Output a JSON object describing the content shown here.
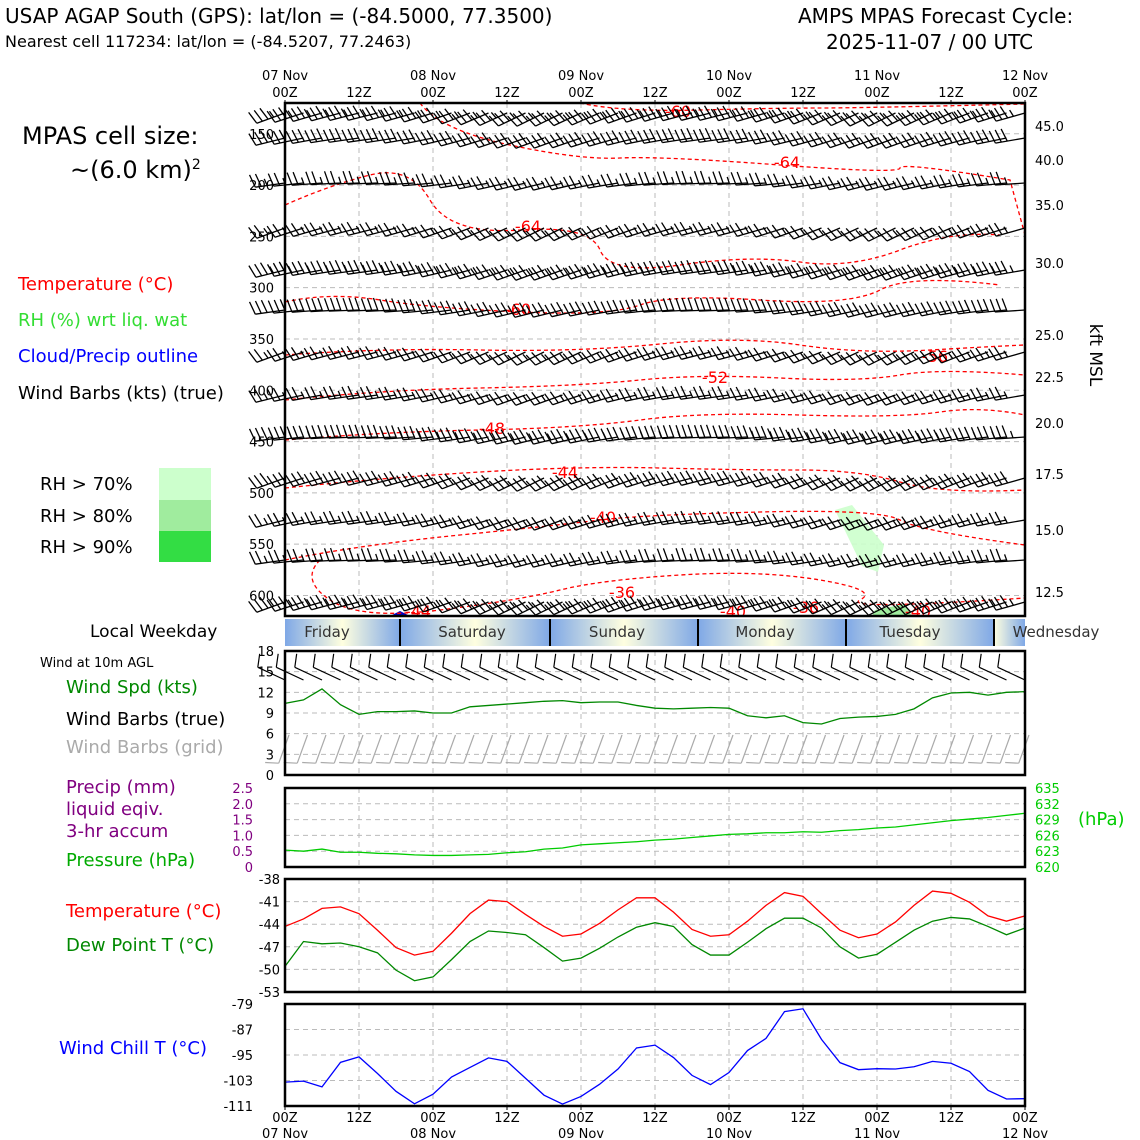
{
  "header": {
    "title_left": "USAP AGAP South (GPS): lat/lon = (-84.5000, 77.3500)",
    "subtitle_left": "Nearest cell 117234: lat/lon = (-84.5207, 77.2463)",
    "title_right_1": "AMPS MPAS Forecast Cycle:",
    "title_right_2": "2025-11-07 / 00 UTC"
  },
  "legend": {
    "cell_size_label": "MPAS cell size:",
    "cell_size_value": "~(6.0 km)",
    "cell_size_exp": "2",
    "temperature": "Temperature (°C)",
    "rh": "RH (%) wrt liq. wat",
    "cloud": "Cloud/Precip outline",
    "barbs": "Wind Barbs (kts) (true)",
    "rh70": "RH > 70%",
    "rh80": "RH > 80%",
    "rh90": "RH > 90%",
    "local_weekday": "Local Weekday",
    "wind10m": "Wind at 10m AGL",
    "wind_spd": "Wind Spd (kts)",
    "wind_barbs_true": "Wind Barbs (true)",
    "wind_barbs_grid": "Wind Barbs (grid)",
    "precip_1": "Precip (mm)",
    "precip_2": "liquid eqiv.",
    "precip_3": "3-hr accum",
    "pressure": "Pressure (hPa)",
    "hpa_unit": "(hPa)",
    "temp2": "Temperature (°C)",
    "dewpoint": "Dew Point T (°C)",
    "windchill": "Wind Chill T (°C)",
    "kft_label": "kft MSL"
  },
  "colors": {
    "temperature": "#ff0000",
    "rh": "#33dd33",
    "cloud": "#0000ff",
    "precip": "#800080",
    "pressure": "#00cc00",
    "windspd": "#008800",
    "dewpoint": "#008800",
    "windchill": "#0000ff",
    "grid_barbs": "#aaaaaa",
    "rh70": "#ccffcc",
    "rh80": "#a0ec9e",
    "rh90": "#33dd44"
  },
  "time_axis": {
    "top_dates": [
      "07 Nov",
      "08 Nov",
      "09 Nov",
      "10 Nov",
      "11 Nov",
      "12 Nov"
    ],
    "ticks": [
      "00Z",
      "12Z",
      "00Z",
      "12Z",
      "00Z",
      "12Z",
      "00Z",
      "12Z",
      "00Z",
      "12Z",
      "00Z"
    ],
    "bottom_dates": [
      "07 Nov",
      "08 Nov",
      "09 Nov",
      "10 Nov",
      "11 Nov",
      "12 Nov"
    ]
  },
  "weekdays": [
    "Friday",
    "Saturday",
    "Sunday",
    "Monday",
    "Tuesday",
    "Wednesday"
  ],
  "chart_data": [
    {
      "type": "heatmap",
      "name": "cross-section",
      "pressure_ticks": [
        150,
        200,
        250,
        300,
        350,
        400,
        450,
        500,
        550,
        600
      ],
      "kft_ticks": [
        "45.0",
        "40.0",
        "35.0",
        "30.0",
        "25.0",
        "22.5",
        "20.0",
        "17.5",
        "15.0",
        "12.5"
      ],
      "temp_contour_labels": [
        "-60",
        "-64",
        "-64",
        "-60",
        "-56",
        "-52",
        "-48",
        "-44",
        "-40",
        "-36",
        "-36",
        "-44",
        "-40",
        "-40"
      ],
      "ylim": [
        120,
        620
      ],
      "xlim_hours": [
        0,
        120
      ]
    },
    {
      "type": "line",
      "name": "wind10m",
      "ylim": [
        0,
        18
      ],
      "yticks": [
        0,
        3,
        6,
        9,
        12,
        15,
        18
      ],
      "x_hours": [
        0,
        3,
        6,
        9,
        12,
        15,
        18,
        21,
        24,
        27,
        30,
        33,
        36,
        39,
        42,
        45,
        48,
        51,
        54,
        57,
        60,
        63,
        66,
        69,
        72,
        75,
        78,
        81,
        84,
        87,
        90,
        93,
        96,
        99,
        102,
        105,
        108,
        111,
        114,
        117,
        120
      ],
      "series": [
        {
          "name": "Wind Spd (kts)",
          "values": [
            10.4,
            10.9,
            12.5,
            10.2,
            8.8,
            9.2,
            9.2,
            9.3,
            9.0,
            9.0,
            9.9,
            10.1,
            10.3,
            10.5,
            10.7,
            10.8,
            10.5,
            10.6,
            10.6,
            10.1,
            9.7,
            9.6,
            9.7,
            9.8,
            9.7,
            8.6,
            8.3,
            8.6,
            7.6,
            7.4,
            8.2,
            8.4,
            8.5,
            8.8,
            9.6,
            11.2,
            11.9,
            12.0,
            11.6,
            12.0,
            12.1
          ]
        }
      ]
    },
    {
      "type": "line",
      "name": "precip-pressure",
      "precip_ylim": [
        0,
        2.5
      ],
      "precip_yticks": [
        "0",
        "0.5",
        "1.0",
        "1.5",
        "2.0",
        "2.5"
      ],
      "pressure_ylim": [
        620,
        635
      ],
      "pressure_yticks": [
        "620",
        "623",
        "626",
        "629",
        "632",
        "635"
      ],
      "x_hours": [
        0,
        3,
        6,
        9,
        12,
        15,
        18,
        21,
        24,
        27,
        30,
        33,
        36,
        39,
        42,
        45,
        48,
        51,
        54,
        57,
        60,
        63,
        66,
        69,
        72,
        75,
        78,
        81,
        84,
        87,
        90,
        93,
        96,
        99,
        102,
        105,
        108,
        111,
        114,
        117,
        120
      ],
      "series": [
        {
          "name": "Pressure (hPa)",
          "values": [
            623.2,
            623.0,
            623.4,
            622.8,
            622.8,
            622.6,
            622.5,
            622.3,
            622.2,
            622.2,
            622.3,
            622.4,
            622.7,
            622.9,
            623.4,
            623.6,
            624.2,
            624.4,
            624.6,
            624.8,
            625.1,
            625.3,
            625.6,
            625.9,
            626.2,
            626.3,
            626.5,
            626.5,
            626.7,
            626.6,
            626.9,
            627.1,
            627.4,
            627.6,
            628.0,
            628.4,
            628.8,
            629.1,
            629.4,
            629.8,
            630.2
          ]
        },
        {
          "name": "Precip (mm)",
          "values": [
            0,
            0,
            0,
            0,
            0,
            0,
            0,
            0,
            0,
            0,
            0,
            0,
            0,
            0,
            0,
            0,
            0,
            0,
            0,
            0,
            0,
            0,
            0,
            0,
            0,
            0,
            0,
            0,
            0,
            0,
            0,
            0,
            0,
            0,
            0,
            0,
            0,
            0,
            0,
            0,
            0
          ]
        }
      ]
    },
    {
      "type": "line",
      "name": "temperature-dewpoint",
      "ylim": [
        -53,
        -38
      ],
      "yticks": [
        -53,
        -50,
        -47,
        -44,
        -41,
        -38
      ],
      "x_hours": [
        0,
        3,
        6,
        9,
        12,
        15,
        18,
        21,
        24,
        27,
        30,
        33,
        36,
        39,
        42,
        45,
        48,
        51,
        54,
        57,
        60,
        63,
        66,
        69,
        72,
        75,
        78,
        81,
        84,
        87,
        90,
        93,
        96,
        99,
        102,
        105,
        108,
        111,
        114,
        117,
        120
      ],
      "series": [
        {
          "name": "Temperature (°C)",
          "values": [
            -44.3,
            -43.3,
            -41.9,
            -41.7,
            -42.6,
            -44.8,
            -47.1,
            -48.1,
            -47.6,
            -45.2,
            -42.6,
            -40.8,
            -41.0,
            -42.7,
            -44.3,
            -45.6,
            -45.3,
            -43.9,
            -42.1,
            -40.5,
            -40.5,
            -42.4,
            -44.7,
            -45.6,
            -45.4,
            -43.6,
            -41.5,
            -39.8,
            -40.3,
            -42.6,
            -44.8,
            -45.8,
            -45.3,
            -43.7,
            -41.5,
            -39.6,
            -39.9,
            -41.1,
            -42.9,
            -43.6,
            -42.9
          ]
        },
        {
          "name": "Dew Point T (°C)",
          "values": [
            -49.6,
            -46.3,
            -46.6,
            -46.5,
            -47.0,
            -47.8,
            -50.1,
            -51.5,
            -51.0,
            -48.7,
            -46.3,
            -44.9,
            -45.1,
            -45.4,
            -47.1,
            -48.9,
            -48.5,
            -47.2,
            -45.7,
            -44.4,
            -43.8,
            -44.3,
            -46.7,
            -48.1,
            -48.1,
            -46.4,
            -44.6,
            -43.2,
            -43.2,
            -44.5,
            -47.0,
            -48.5,
            -48.0,
            -46.4,
            -44.8,
            -43.6,
            -43.1,
            -43.3,
            -44.3,
            -45.4,
            -44.5
          ]
        }
      ]
    },
    {
      "type": "line",
      "name": "windchill",
      "ylim": [
        -111,
        -79
      ],
      "yticks": [
        -111,
        -103,
        -95,
        -87,
        -79
      ],
      "x_hours": [
        0,
        3,
        6,
        9,
        12,
        15,
        18,
        21,
        24,
        27,
        30,
        33,
        36,
        39,
        42,
        45,
        48,
        51,
        54,
        57,
        60,
        63,
        66,
        69,
        72,
        75,
        78,
        81,
        84,
        87,
        90,
        93,
        96,
        99,
        102,
        105,
        108,
        111,
        114,
        117,
        120
      ],
      "series": [
        {
          "name": "Wind Chill T (°C)",
          "values": [
            -103.5,
            -103.2,
            -105.0,
            -97.3,
            -95.6,
            -100.8,
            -106.4,
            -110.3,
            -107.3,
            -101.9,
            -98.9,
            -95.9,
            -97.0,
            -102.3,
            -107.6,
            -110.4,
            -108.0,
            -104.2,
            -99.4,
            -92.8,
            -91.9,
            -95.8,
            -101.4,
            -104.3,
            -100.5,
            -93.6,
            -89.8,
            -81.4,
            -80.5,
            -90.1,
            -97.4,
            -99.6,
            -99.3,
            -99.4,
            -98.7,
            -97.0,
            -97.6,
            -100.2,
            -106.1,
            -108.8,
            -108.7
          ]
        }
      ]
    }
  ]
}
